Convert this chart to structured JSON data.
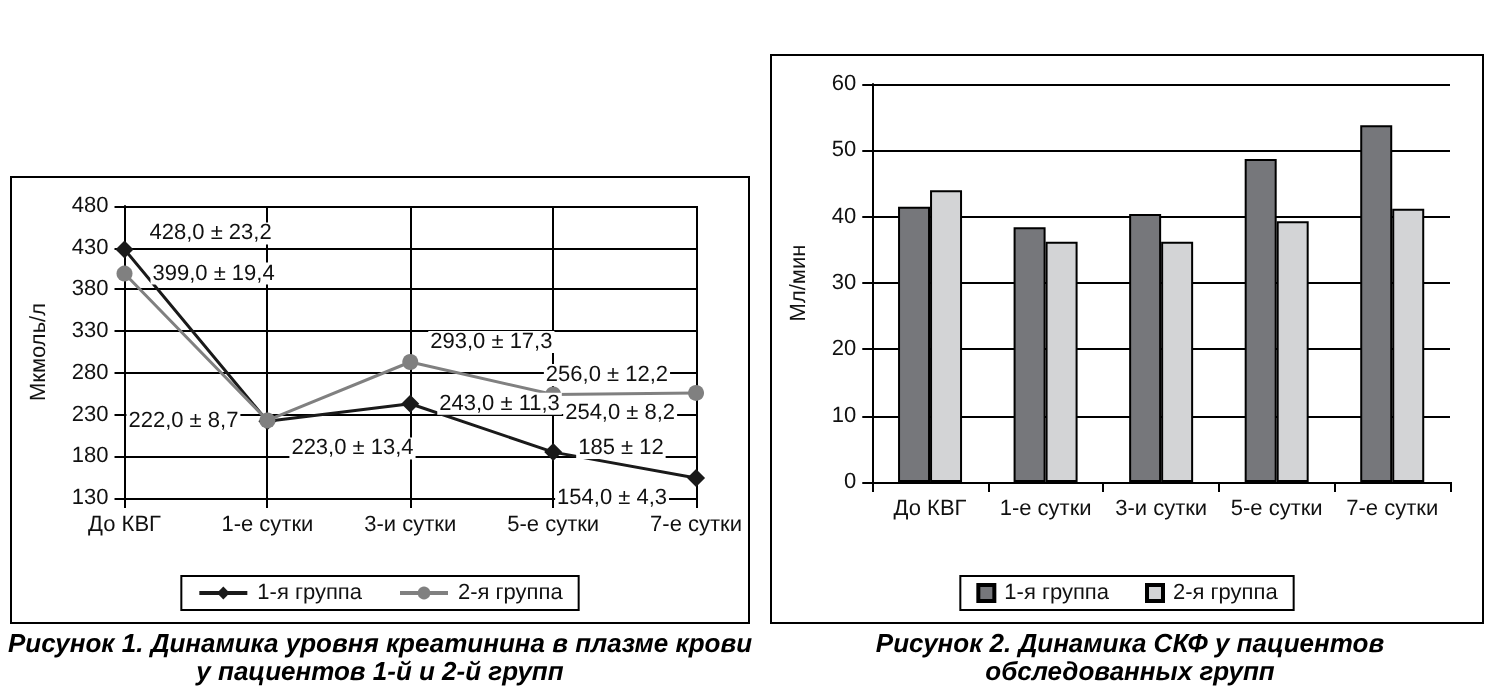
{
  "chart_data": [
    {
      "type": "line",
      "title": "Рисунок 1. Динамика уровня креатинина в плазме крови у пациентов 1-й и 2-й групп",
      "ylabel": "Мкмоль/л",
      "categories": [
        "До КВГ",
        "1-е сутки",
        "3-и сутки",
        "5-е сутки",
        "7-е сутки"
      ],
      "series": [
        {
          "name": "1-я группа",
          "color": "#1a1a1a",
          "marker": "diamond",
          "values": [
            428,
            222,
            243,
            185,
            154
          ],
          "value_labels": [
            "428,0 ± 23,2",
            "222,0 ± 8,7",
            "243,0 ± 11,3",
            "185 ± 12",
            "154,0 ± 4,3"
          ]
        },
        {
          "name": "2-я группа",
          "color": "#808080",
          "marker": "circle",
          "values": [
            399,
            223,
            293,
            254,
            256
          ],
          "value_labels": [
            "399,0 ± 19,4",
            "223,0 ± 13,4",
            "293,0 ± 17,3",
            "254,0 ± 8,2",
            "256,0 ± 12,2"
          ]
        }
      ],
      "ylim": [
        130,
        480
      ],
      "yticks": [
        130,
        180,
        230,
        280,
        330,
        380,
        430,
        480
      ],
      "grid": true,
      "legend": "bottom"
    },
    {
      "type": "bar",
      "title": "Рисунок 2. Динамика СКФ у пациентов обследованных групп",
      "ylabel": "Мл/мин",
      "categories": [
        "До КВГ",
        "1-е сутки",
        "3-и сутки",
        "5-е сутки",
        "7-е сутки"
      ],
      "series": [
        {
          "name": "1-я группа",
          "color": "#76777b",
          "values": [
            41.5,
            38.4,
            40.4,
            48.7,
            53.8
          ]
        },
        {
          "name": "2-я группа",
          "color": "#d3d4d6",
          "values": [
            44,
            36.2,
            36.2,
            39.3,
            41.2
          ]
        }
      ],
      "ylim": [
        0,
        60
      ],
      "yticks": [
        0,
        10,
        20,
        30,
        40,
        50,
        60
      ],
      "grid": "y",
      "legend": "bottom"
    }
  ]
}
